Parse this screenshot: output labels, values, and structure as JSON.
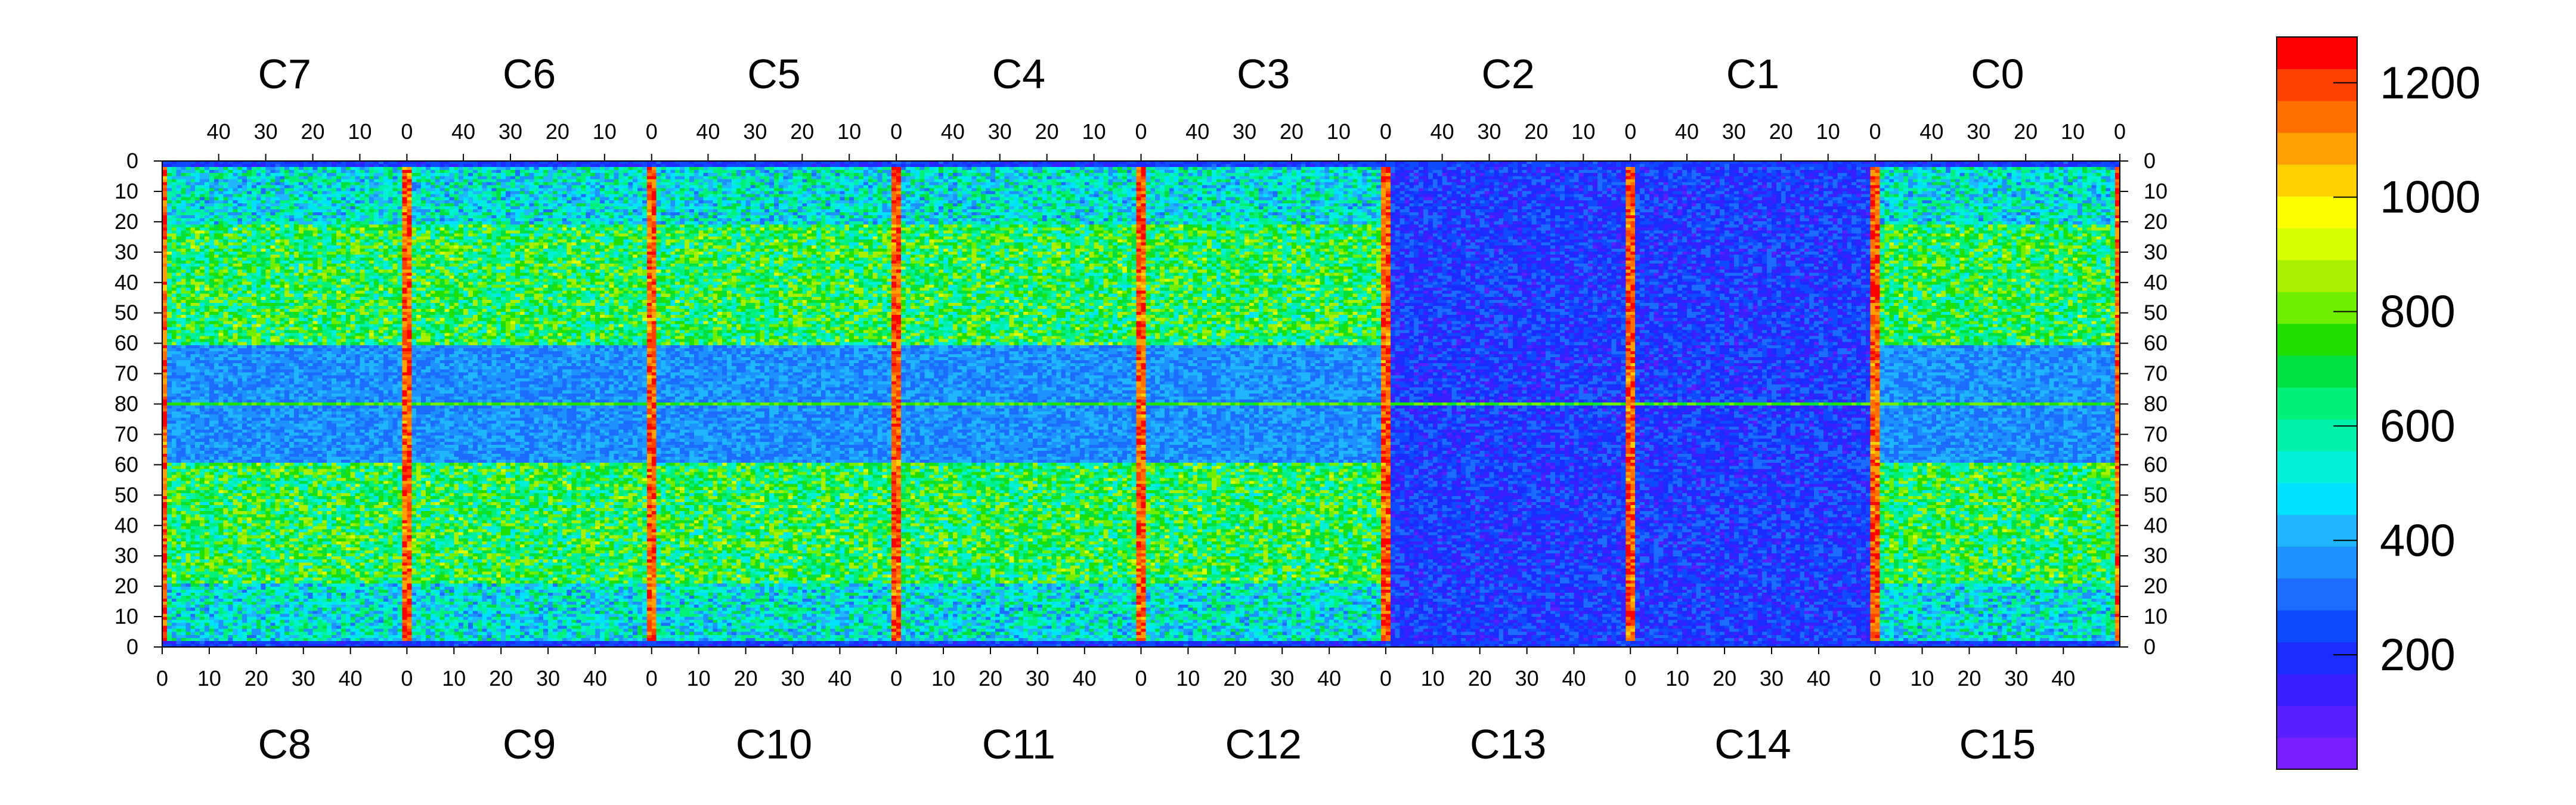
{
  "chart_data": {
    "type": "heatmap",
    "title": "",
    "xlabel": "",
    "ylabel": "",
    "top_chip_labels": [
      "C7",
      "C6",
      "C5",
      "C4",
      "C3",
      "C2",
      "C1",
      "C0"
    ],
    "bottom_chip_labels": [
      "C8",
      "C9",
      "C10",
      "C11",
      "C12",
      "C13",
      "C14",
      "C15"
    ],
    "top_x_tick_labels": [
      "40",
      "30",
      "20",
      "10",
      "0"
    ],
    "bottom_x_tick_labels": [
      "0",
      "10",
      "20",
      "30",
      "40"
    ],
    "x_per_chip_range": [
      0,
      52
    ],
    "y_tick_labels_top_half": [
      "0",
      "10",
      "20",
      "30",
      "40",
      "50",
      "60",
      "70",
      "80"
    ],
    "y_tick_labels_bottom_half": [
      "70",
      "60",
      "50",
      "40",
      "30",
      "20",
      "10",
      "0"
    ],
    "y_per_half_range": [
      0,
      80
    ],
    "colorbar": {
      "range": [
        0,
        1280
      ],
      "tick_labels": [
        "200",
        "400",
        "600",
        "800",
        "1000",
        "1200"
      ],
      "tick_values": [
        200,
        400,
        600,
        800,
        1000,
        1200
      ],
      "palette": [
        "#7a1fff",
        "#5a1fff",
        "#3a1fff",
        "#1a2cff",
        "#0f4aff",
        "#1b6cff",
        "#1d92ff",
        "#1fb6ff",
        "#00e0ff",
        "#00f0d8",
        "#00f0a8",
        "#00f078",
        "#00e040",
        "#20e000",
        "#70ee00",
        "#a8f000",
        "#d8ff00",
        "#ffff00",
        "#ffd000",
        "#ffa000",
        "#ff7000",
        "#ff4000",
        "#ff0000"
      ]
    },
    "grid": false,
    "legend": "colorbar-right"
  }
}
